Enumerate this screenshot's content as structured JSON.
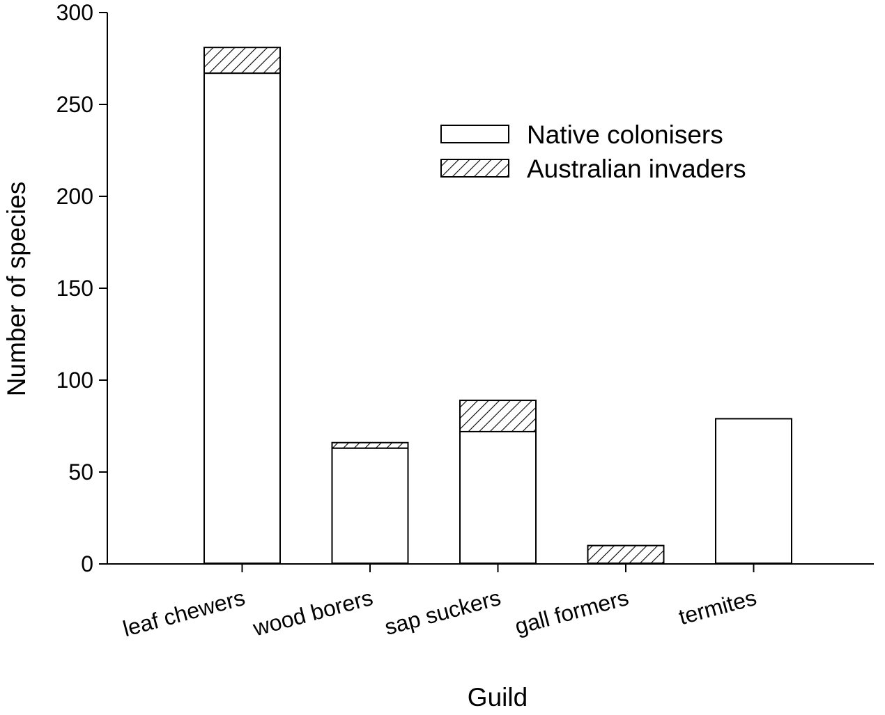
{
  "chart_data": {
    "type": "bar",
    "stacked": true,
    "xlabel": "Guild",
    "ylabel": "Number of species",
    "ylim": [
      0,
      300
    ],
    "yticks": [
      0,
      50,
      100,
      150,
      200,
      250,
      300
    ],
    "categories": [
      "leaf chewers",
      "wood borers",
      "sap suckers",
      "gall formers",
      "termites"
    ],
    "series": [
      {
        "name": "Native colonisers",
        "pattern": "solid-white",
        "values": [
          267,
          63,
          72,
          0,
          79
        ]
      },
      {
        "name": "Australian invaders",
        "pattern": "diagonal-hatch",
        "values": [
          14,
          3,
          17,
          10,
          0
        ]
      }
    ],
    "legend": "upper-right",
    "grid": false,
    "colors": {
      "stroke": "#000000",
      "fill": "#ffffff"
    }
  }
}
